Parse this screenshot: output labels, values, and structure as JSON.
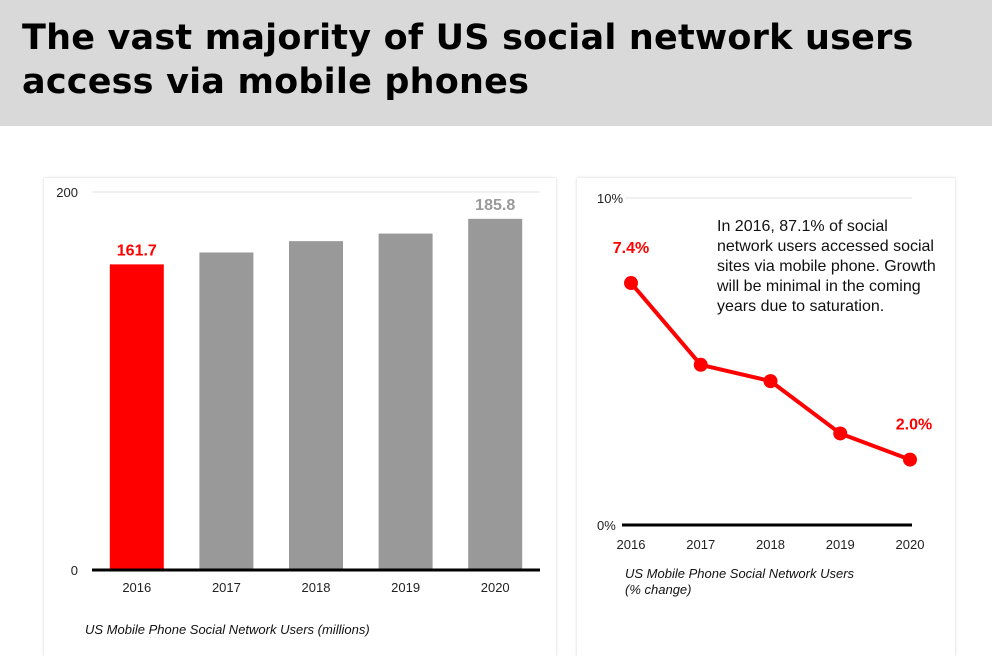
{
  "title": "The vast majority of US social network users access via mobile phones",
  "colors": {
    "highlight": "#ff0000",
    "bar": "#999999",
    "axis": "#000000",
    "grid": "#e0e0e0",
    "header_bg": "#d9d9d9"
  },
  "chart_data": [
    {
      "type": "bar",
      "caption": "US Mobile Phone Social Network Users (millions)",
      "categories": [
        "2016",
        "2017",
        "2018",
        "2019",
        "2020"
      ],
      "values": [
        161.7,
        168,
        174,
        178,
        185.8
      ],
      "data_labels": [
        "161.7",
        "",
        "",
        "",
        "185.8"
      ],
      "highlight_index": 0,
      "y_ticks": [
        "0",
        "200"
      ],
      "ylim": [
        0,
        200
      ],
      "grid": true
    },
    {
      "type": "line",
      "caption": "US Mobile Phone Social Network Users\n(% change)",
      "categories": [
        "2016",
        "2017",
        "2018",
        "2019",
        "2020"
      ],
      "values": [
        7.4,
        4.9,
        4.4,
        2.8,
        2.0
      ],
      "data_labels": [
        "7.4%",
        "",
        "",
        "",
        "2.0%"
      ],
      "y_ticks": [
        "0%",
        "10%"
      ],
      "ylim": [
        0,
        10
      ],
      "annotation": "In 2016, 87.1% of social network users accessed social sites via mobile phone. Growth will be minimal in the coming years due to saturation."
    }
  ]
}
